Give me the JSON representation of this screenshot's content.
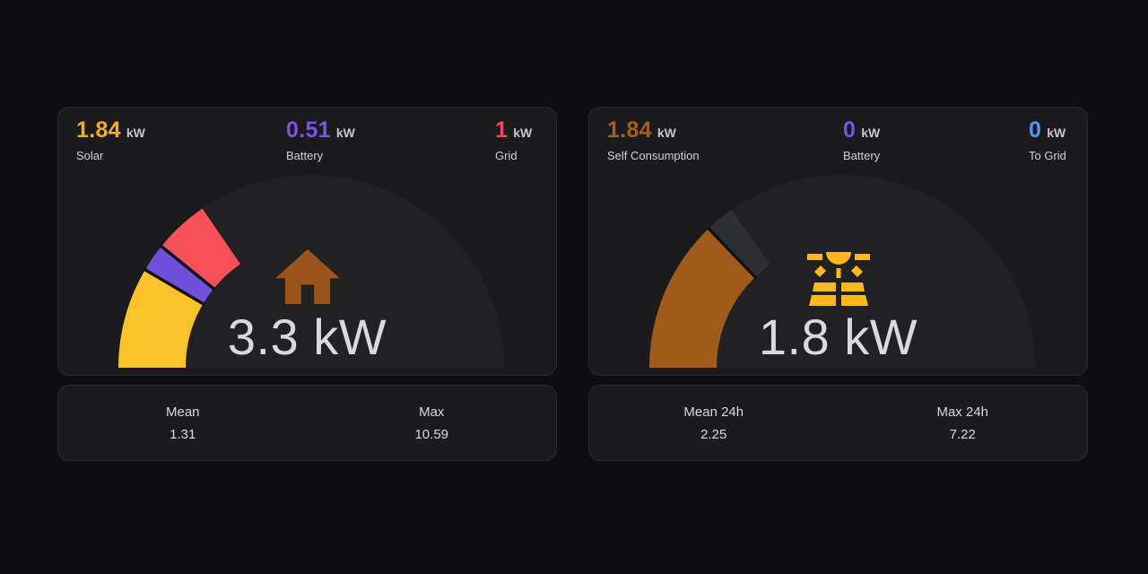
{
  "page": {
    "background": "#0e0e10",
    "card_background": "#1b1b1d"
  },
  "cards": [
    {
      "id": "house-consumption",
      "header": [
        {
          "value": "1.84",
          "unit": "kW",
          "label": "Solar",
          "color": "#f0ad2c"
        },
        {
          "value": "0.51",
          "unit": "kW",
          "label": "Battery",
          "color": "#7a56de"
        },
        {
          "value": "1",
          "unit": "kW",
          "label": "Grid",
          "color": "#f2495c"
        }
      ],
      "gauge": {
        "value_text": "3.3 kW",
        "icon": "home-icon",
        "icon_color": "#9b541b",
        "max": 10.84,
        "segments": [
          {
            "name": "Solar",
            "value": 1.84,
            "color": "#fcc22b"
          },
          {
            "name": "Battery",
            "value": 0.51,
            "color": "#6e50dc"
          },
          {
            "name": "Grid",
            "value": 1.0,
            "color": "#f6505a"
          }
        ]
      },
      "stats": [
        {
          "label": "Mean",
          "value": "1.31"
        },
        {
          "label": "Max",
          "value": "10.59"
        }
      ]
    },
    {
      "id": "solar-production",
      "header": [
        {
          "value": "1.84",
          "unit": "kW",
          "label": "Self Consumption",
          "color": "#a35e20"
        },
        {
          "value": "0",
          "unit": "kW",
          "label": "Battery",
          "color": "#7a56de"
        },
        {
          "value": "0",
          "unit": "kW",
          "label": "To Grid",
          "color": "#5794f2"
        }
      ],
      "gauge": {
        "value_text": "1.8 kW",
        "icon": "solar-power-icon",
        "icon_color": "#fcb91f",
        "max": 7.17,
        "segments": [
          {
            "name": "Self Consumption",
            "value": 1.84,
            "color": "#a05a1c"
          },
          {
            "name": "unlabeled-dark-segment",
            "value": 0.35,
            "color": "#2d2f33"
          }
        ]
      },
      "stats": [
        {
          "label": "Mean 24h",
          "value": "2.25"
        },
        {
          "label": "Max 24h",
          "value": "7.22"
        }
      ]
    }
  ],
  "chart_data": [
    {
      "type": "gauge",
      "title": "3.3 kW",
      "min": 0,
      "max": 10.84,
      "series": [
        {
          "name": "Solar",
          "value": 1.84
        },
        {
          "name": "Battery",
          "value": 0.51
        },
        {
          "name": "Grid",
          "value": 1.0
        }
      ],
      "stats": {
        "Mean": 1.31,
        "Max": 10.59
      },
      "layout": "half-circle gauge, fill starts at left (min), icon and value centered"
    },
    {
      "type": "gauge",
      "title": "1.8 kW",
      "min": 0,
      "max": 7.17,
      "series": [
        {
          "name": "Self Consumption",
          "value": 1.84
        },
        {
          "name": "unlabeled-dark-segment",
          "value": 0.35
        }
      ],
      "stats": {
        "Mean 24h": 2.25,
        "Max 24h": 7.22
      },
      "layout": "half-circle gauge, fill starts at left (min), icon and value centered"
    }
  ]
}
